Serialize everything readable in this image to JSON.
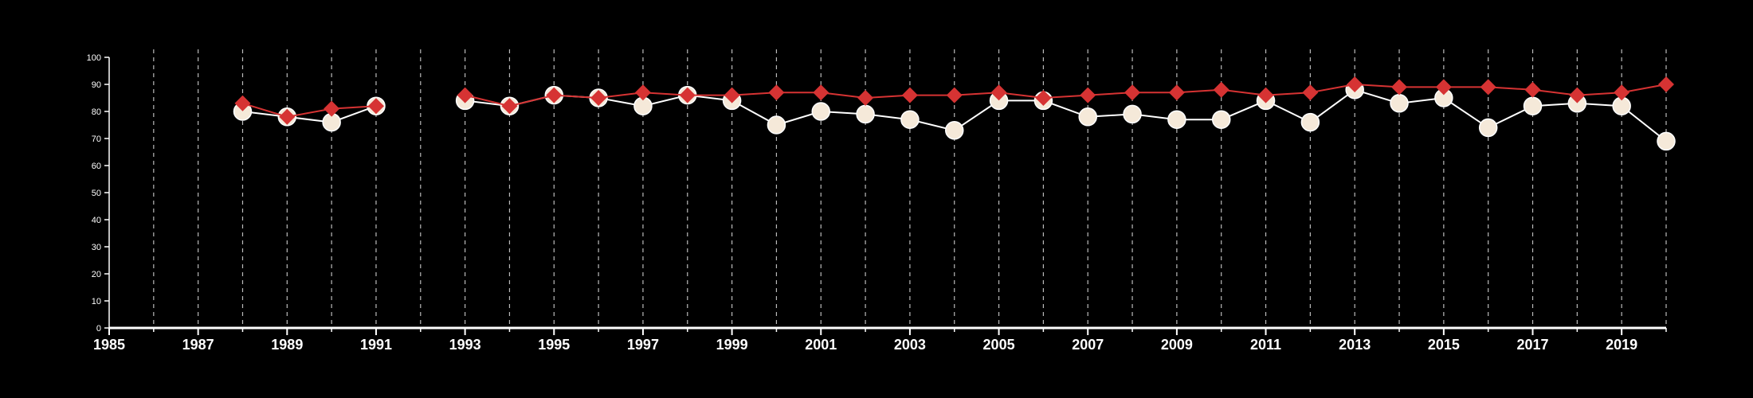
{
  "colors": {
    "background": "#000000",
    "axis": "#ffffff",
    "grid": "#bbbbbb",
    "series_a_line": "#ffffff",
    "series_a_marker": "#f5e9d9",
    "series_b": "#d63333"
  },
  "chart_data": {
    "type": "line",
    "title": "",
    "xlabel": "",
    "ylabel": "",
    "xlim": [
      1985,
      2020
    ],
    "ylim": [
      0,
      100
    ],
    "x_ticks": [
      1985,
      1987,
      1989,
      1991,
      1993,
      1995,
      1997,
      1999,
      2001,
      2003,
      2005,
      2007,
      2009,
      2011,
      2013,
      2015,
      2017,
      2019
    ],
    "x_tick_labels": [
      "1985",
      "1987",
      "1989",
      "1991",
      "1993",
      "1995",
      "1997",
      "1999",
      "2001",
      "2003",
      "2005",
      "2007",
      "2009",
      "2011",
      "2013",
      "2015",
      "2017",
      "2019"
    ],
    "y_ticks": [
      0,
      10,
      20,
      30,
      40,
      50,
      60,
      70,
      80,
      90,
      100
    ],
    "y_tick_labels": [
      "0",
      "10",
      "20",
      "30",
      "40",
      "50",
      "60",
      "70",
      "80",
      "90",
      "100"
    ],
    "grid": "vertical dashed lines at each year",
    "legend": "none",
    "series": [
      {
        "marker": "circle",
        "points": [
          [
            1988,
            80
          ],
          [
            1989,
            78
          ],
          [
            1990,
            76
          ],
          [
            1991,
            82
          ],
          [
            1993,
            84
          ],
          [
            1994,
            82
          ],
          [
            1995,
            86
          ],
          [
            1996,
            85
          ],
          [
            1997,
            82
          ],
          [
            1998,
            86
          ],
          [
            1999,
            84
          ],
          [
            2000,
            75
          ],
          [
            2001,
            80
          ],
          [
            2002,
            79
          ],
          [
            2003,
            77
          ],
          [
            2004,
            73
          ],
          [
            2005,
            84
          ],
          [
            2006,
            84
          ],
          [
            2007,
            78
          ],
          [
            2008,
            79
          ],
          [
            2009,
            77
          ],
          [
            2010,
            77
          ],
          [
            2011,
            84
          ],
          [
            2012,
            76
          ],
          [
            2013,
            88
          ],
          [
            2014,
            83
          ],
          [
            2015,
            85
          ],
          [
            2016,
            74
          ],
          [
            2017,
            82
          ],
          [
            2018,
            83
          ],
          [
            2019,
            82
          ],
          [
            2020,
            69
          ]
        ]
      },
      {
        "marker": "diamond",
        "points": [
          [
            1988,
            83
          ],
          [
            1989,
            78
          ],
          [
            1990,
            81
          ],
          [
            1991,
            82
          ],
          [
            1993,
            86
          ],
          [
            1994,
            82
          ],
          [
            1995,
            86
          ],
          [
            1996,
            85
          ],
          [
            1997,
            87
          ],
          [
            1998,
            86
          ],
          [
            1999,
            86
          ],
          [
            2000,
            87
          ],
          [
            2001,
            87
          ],
          [
            2002,
            85
          ],
          [
            2003,
            86
          ],
          [
            2004,
            86
          ],
          [
            2005,
            87
          ],
          [
            2006,
            85
          ],
          [
            2007,
            86
          ],
          [
            2008,
            87
          ],
          [
            2009,
            87
          ],
          [
            2010,
            88
          ],
          [
            2011,
            86
          ],
          [
            2012,
            87
          ],
          [
            2013,
            90
          ],
          [
            2014,
            89
          ],
          [
            2015,
            89
          ],
          [
            2016,
            89
          ],
          [
            2017,
            88
          ],
          [
            2018,
            86
          ],
          [
            2019,
            87
          ],
          [
            2020,
            90
          ]
        ]
      }
    ]
  }
}
